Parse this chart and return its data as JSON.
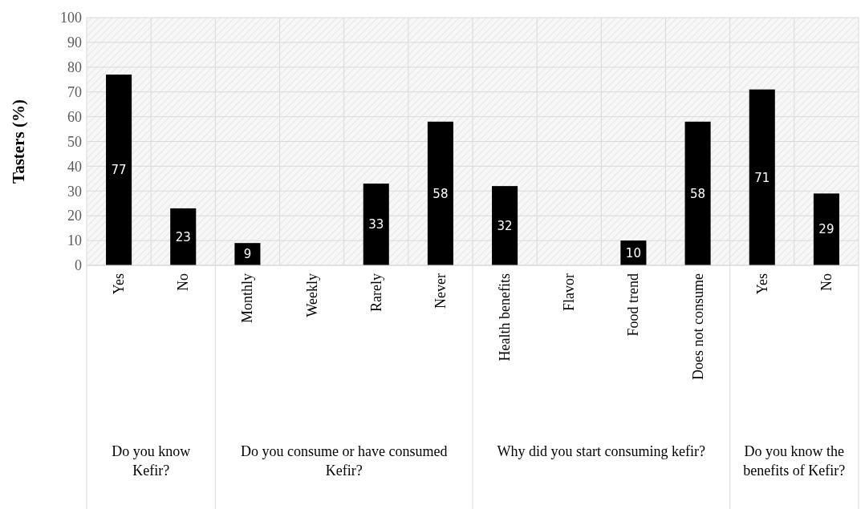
{
  "chart_data": {
    "type": "bar",
    "ylabel": "Tasters (%)",
    "categories": [
      "Yes",
      "No",
      "Monthly",
      "Weekly",
      "Rarely",
      "Never",
      "Health benefits",
      "Flavor",
      "Food trend",
      "Does not consume",
      "Yes",
      "No"
    ],
    "values": [
      77,
      23,
      9,
      null,
      33,
      58,
      32,
      null,
      10,
      58,
      71,
      29
    ],
    "color": "#000000",
    "ylim": [
      0,
      100
    ],
    "yticks": [
      0,
      10,
      20,
      30,
      40,
      50,
      60,
      70,
      80,
      90,
      100
    ],
    "grid": true,
    "data_labels": true,
    "annotations": [
      "Do you know Kefir?",
      "Do you consume or have consumed Kefir?",
      "Why did you start consuming kefir?",
      "Do you know the benefits of Kefir?"
    ]
  }
}
